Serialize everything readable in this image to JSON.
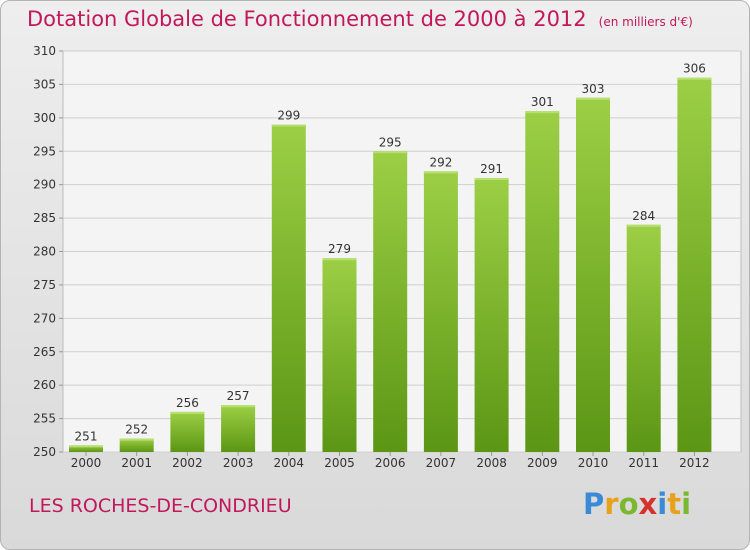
{
  "title": "Dotation Globale de Fonctionnement de 2000 à 2012",
  "unit_note": "(en milliers d'€)",
  "commune": "LES ROCHES-DE-CONDRIEU",
  "logo": {
    "text": "Proxiti",
    "letters": [
      {
        "ch": "P",
        "color": "#3a8ad8"
      },
      {
        "ch": "r",
        "color": "#e8a11a"
      },
      {
        "ch": "o",
        "color": "#7cb82f"
      },
      {
        "ch": "x",
        "color": "#d6312a"
      },
      {
        "ch": "i",
        "color": "#3a8ad8"
      },
      {
        "ch": "t",
        "color": "#e8a11a"
      },
      {
        "ch": "i",
        "color": "#7cb82f"
      }
    ]
  },
  "colors": {
    "title": "#c2185b",
    "bar_top": "#9ccf45",
    "bar_bottom": "#5b9614",
    "grid": "#cfcfcf",
    "axis_text": "#333333"
  },
  "chart_data": {
    "type": "bar",
    "categories": [
      "2000",
      "2001",
      "2002",
      "2003",
      "2004",
      "2005",
      "2006",
      "2007",
      "2008",
      "2009",
      "2010",
      "2011",
      "2012"
    ],
    "values": [
      251,
      252,
      256,
      257,
      299,
      279,
      295,
      292,
      291,
      301,
      303,
      284,
      306
    ],
    "ylim": [
      250,
      310
    ],
    "yticks": [
      250,
      255,
      260,
      265,
      270,
      275,
      280,
      285,
      290,
      295,
      300,
      305,
      310
    ],
    "grid": true,
    "xlabel": "",
    "ylabel": ""
  }
}
